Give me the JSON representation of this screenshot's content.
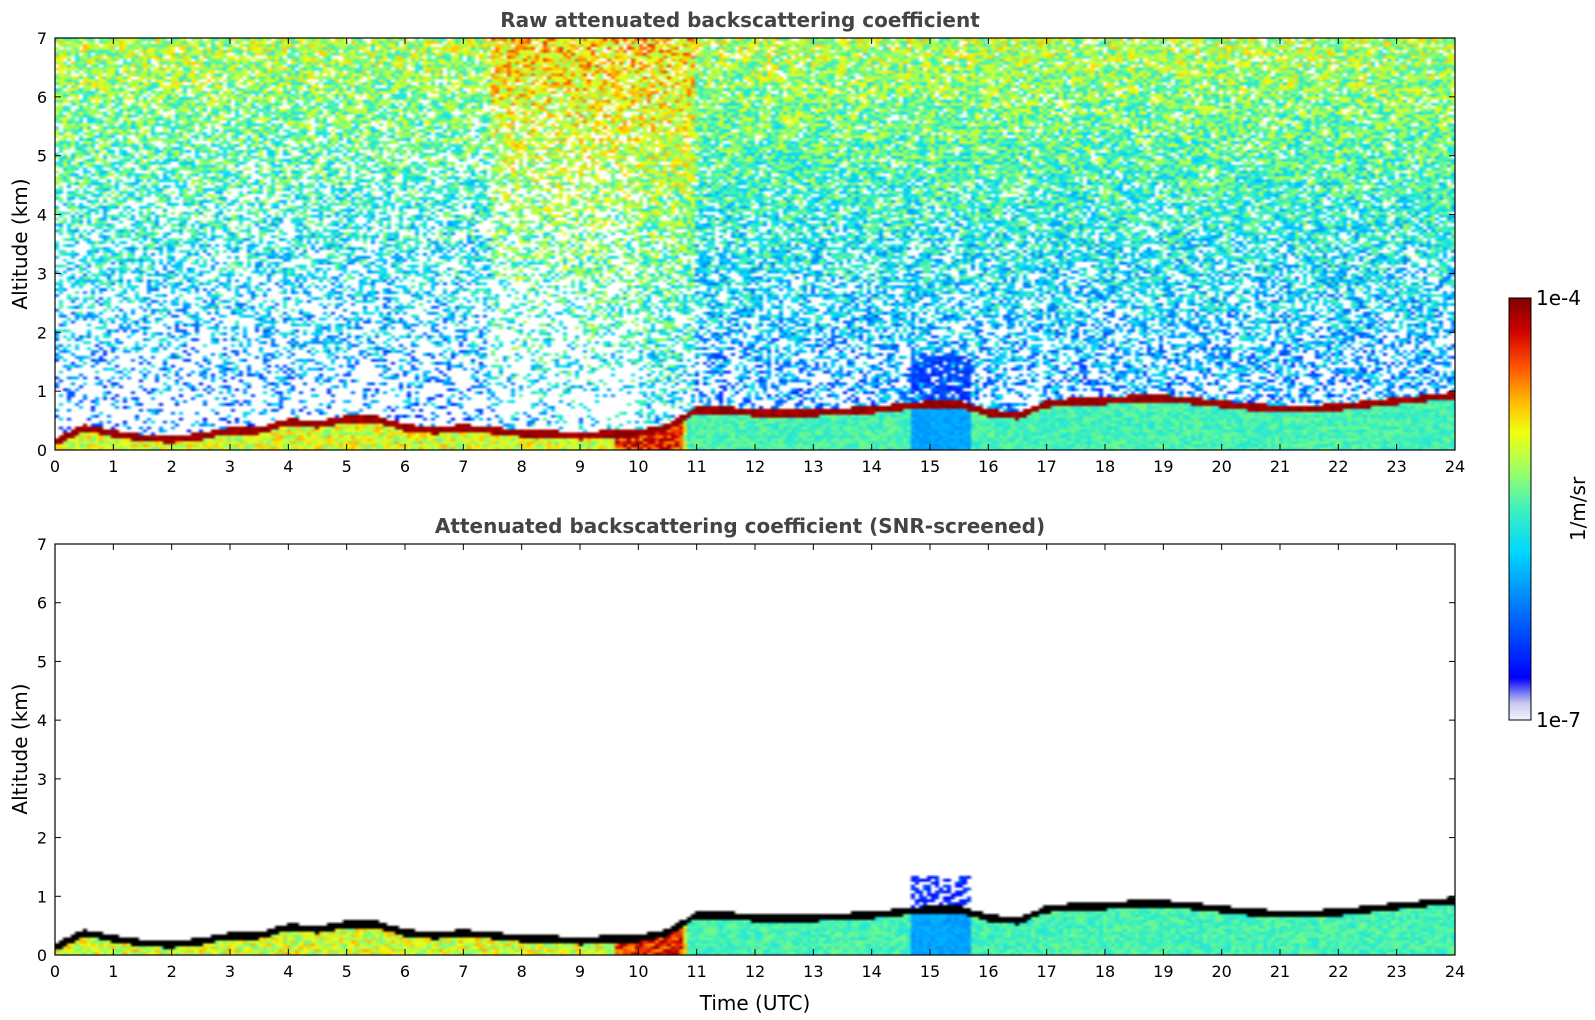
{
  "chart_data": [
    {
      "type": "heatmap",
      "title": "Raw attenuated backscattering coefficient",
      "xlabel": "",
      "ylabel": "Altitude (km)",
      "xlim": [
        0,
        24
      ],
      "ylim": [
        0,
        7
      ],
      "x_ticks": [
        "0",
        "1",
        "2",
        "3",
        "4",
        "5",
        "6",
        "7",
        "8",
        "9",
        "10",
        "11",
        "12",
        "13",
        "14",
        "15",
        "16",
        "17",
        "18",
        "19",
        "20",
        "21",
        "22",
        "23",
        "24"
      ],
      "y_ticks": [
        "0",
        "1",
        "2",
        "3",
        "4",
        "5",
        "6",
        "7"
      ],
      "colormap": "jet",
      "screened": false,
      "boundary_layer_top_km": {
        "time_utc": [
          0,
          0.5,
          1,
          1.5,
          2,
          2.5,
          3,
          3.5,
          4,
          4.5,
          5,
          5.5,
          6,
          6.5,
          7,
          7.5,
          8,
          8.5,
          9,
          9.5,
          10,
          10.5,
          11,
          11.5,
          12,
          12.5,
          13,
          13.5,
          14,
          14.5,
          15,
          15.5,
          16,
          16.5,
          17,
          17.5,
          18,
          18.5,
          19,
          19.5,
          20,
          20.5,
          21,
          21.5,
          22,
          22.5,
          23,
          23.5,
          24
        ],
        "altitude_km": [
          0.15,
          0.4,
          0.3,
          0.22,
          0.2,
          0.25,
          0.35,
          0.35,
          0.5,
          0.45,
          0.55,
          0.55,
          0.4,
          0.35,
          0.4,
          0.35,
          0.3,
          0.3,
          0.25,
          0.3,
          0.3,
          0.4,
          0.7,
          0.7,
          0.65,
          0.65,
          0.65,
          0.68,
          0.7,
          0.75,
          0.8,
          0.8,
          0.65,
          0.6,
          0.8,
          0.85,
          0.85,
          0.9,
          0.9,
          0.85,
          0.8,
          0.75,
          0.72,
          0.72,
          0.75,
          0.8,
          0.85,
          0.9,
          0.95
        ]
      }
    },
    {
      "type": "heatmap",
      "title": "Attenuated backscattering coefficient (SNR-screened)",
      "xlabel": "Time (UTC)",
      "ylabel": "Altitude (km)",
      "xlim": [
        0,
        24
      ],
      "ylim": [
        0,
        7
      ],
      "x_ticks": [
        "0",
        "1",
        "2",
        "3",
        "4",
        "5",
        "6",
        "7",
        "8",
        "9",
        "10",
        "11",
        "12",
        "13",
        "14",
        "15",
        "16",
        "17",
        "18",
        "19",
        "20",
        "21",
        "22",
        "23",
        "24"
      ],
      "y_ticks": [
        "0",
        "1",
        "2",
        "3",
        "4",
        "5",
        "6",
        "7"
      ],
      "colormap": "jet",
      "screened": true,
      "boundary_layer_top_km": {
        "time_utc": [
          0,
          0.5,
          1,
          1.5,
          2,
          2.5,
          3,
          3.5,
          4,
          4.5,
          5,
          5.5,
          6,
          6.5,
          7,
          7.5,
          8,
          8.5,
          9,
          9.5,
          10,
          10.5,
          11,
          11.5,
          12,
          12.5,
          13,
          13.5,
          14,
          14.5,
          15,
          15.5,
          16,
          16.5,
          17,
          17.5,
          18,
          18.5,
          19,
          19.5,
          20,
          20.5,
          21,
          21.5,
          22,
          22.5,
          23,
          23.5,
          24
        ],
        "altitude_km": [
          0.15,
          0.4,
          0.3,
          0.22,
          0.2,
          0.25,
          0.35,
          0.35,
          0.5,
          0.45,
          0.55,
          0.55,
          0.4,
          0.35,
          0.4,
          0.35,
          0.3,
          0.3,
          0.25,
          0.3,
          0.3,
          0.4,
          0.7,
          0.7,
          0.65,
          0.65,
          0.65,
          0.68,
          0.7,
          0.75,
          0.8,
          0.8,
          0.65,
          0.6,
          0.8,
          0.85,
          0.85,
          0.9,
          0.9,
          0.85,
          0.8,
          0.75,
          0.72,
          0.72,
          0.75,
          0.8,
          0.85,
          0.9,
          0.95
        ]
      }
    }
  ],
  "colorbar": {
    "max_label": "1e-4",
    "min_label": "1e-7",
    "unit_label": "1/m/sr",
    "scale": "log",
    "colors": [
      "#e8e8f8",
      "#b8b8f0",
      "#0000ff",
      "#0080ff",
      "#00ccff",
      "#40e0c0",
      "#80ff80",
      "#c0ff40",
      "#ffff00",
      "#ffc000",
      "#ff8000",
      "#ff2000",
      "#c00000",
      "#800000"
    ]
  }
}
